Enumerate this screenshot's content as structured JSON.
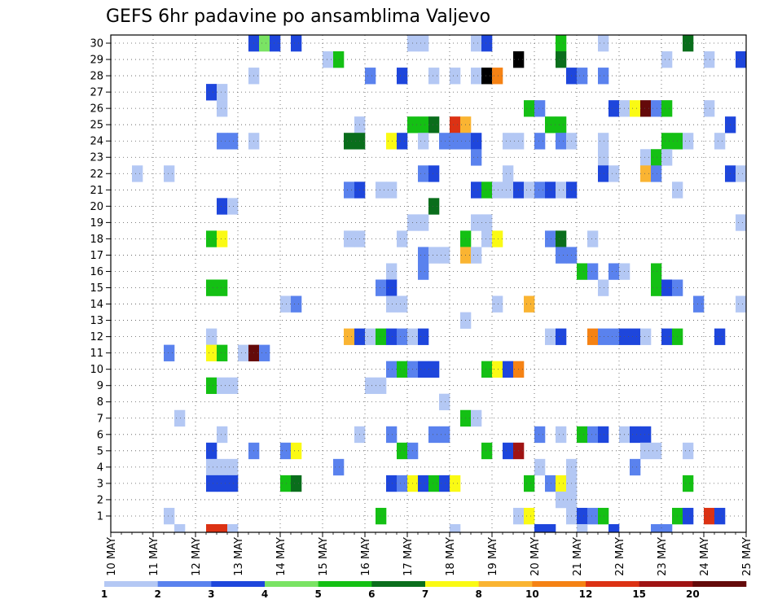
{
  "chart_data": {
    "type": "heatmap",
    "title": "GEFS 6hr padavine po ansamblima Valjevo",
    "x_labels": [
      "10 MAY",
      "11 MAY",
      "12 MAY",
      "13 MAY",
      "14 MAY",
      "15 MAY",
      "16 MAY",
      "17 MAY",
      "18 MAY",
      "19 MAY",
      "20 MAY",
      "21 MAY",
      "22 MAY",
      "23 MAY",
      "24 MAY",
      "25 MAY"
    ],
    "y_ticks": [
      1,
      2,
      3,
      4,
      5,
      6,
      7,
      8,
      9,
      10,
      11,
      12,
      13,
      14,
      15,
      16,
      17,
      18,
      19,
      20,
      21,
      22,
      23,
      24,
      25,
      26,
      27,
      28,
      29,
      30
    ],
    "members": 30,
    "steps": 60,
    "step_hours": 6,
    "grid": true,
    "legend_placement": "bottom",
    "legend": {
      "labels": [
        "1",
        "2",
        "3",
        "4",
        "5",
        "6",
        "7",
        "8",
        "10",
        "12",
        "15",
        "20"
      ],
      "colors": [
        "#b4c8f4",
        "#5a82ee",
        "#1e46dc",
        "#7ae364",
        "#14c014",
        "#0a6e1c",
        "#fafa14",
        "#fab432",
        "#f58214",
        "#dc3214",
        "#a01414",
        "#640a0a"
      ]
    },
    "cells": [
      [
        30,
        13,
        3
      ],
      [
        30,
        14,
        4
      ],
      [
        30,
        15,
        3
      ],
      [
        30,
        17,
        3
      ],
      [
        30,
        28,
        1
      ],
      [
        30,
        29,
        1
      ],
      [
        30,
        34,
        1
      ],
      [
        30,
        35,
        3
      ],
      [
        30,
        42,
        5
      ],
      [
        30,
        46,
        1
      ],
      [
        30,
        54,
        6
      ],
      [
        29,
        20,
        1
      ],
      [
        29,
        21,
        5
      ],
      [
        29,
        38,
        13
      ],
      [
        29,
        42,
        6
      ],
      [
        29,
        52,
        1
      ],
      [
        29,
        56,
        1
      ],
      [
        29,
        59,
        3
      ],
      [
        28,
        13,
        1
      ],
      [
        28,
        24,
        2
      ],
      [
        28,
        27,
        3
      ],
      [
        28,
        30,
        1
      ],
      [
        28,
        32,
        1
      ],
      [
        28,
        34,
        1
      ],
      [
        28,
        35,
        14
      ],
      [
        28,
        36,
        9
      ],
      [
        28,
        43,
        3
      ],
      [
        28,
        44,
        2
      ],
      [
        28,
        46,
        2
      ],
      [
        27,
        9,
        3
      ],
      [
        27,
        10,
        1
      ],
      [
        26,
        10,
        1
      ],
      [
        26,
        39,
        5
      ],
      [
        26,
        40,
        2
      ],
      [
        26,
        47,
        3
      ],
      [
        26,
        48,
        1
      ],
      [
        26,
        49,
        7
      ],
      [
        26,
        50,
        12
      ],
      [
        26,
        51,
        2
      ],
      [
        26,
        52,
        5
      ],
      [
        26,
        56,
        1
      ],
      [
        25,
        23,
        1
      ],
      [
        25,
        28,
        5
      ],
      [
        25,
        29,
        5
      ],
      [
        25,
        30,
        6
      ],
      [
        25,
        32,
        10
      ],
      [
        25,
        33,
        8
      ],
      [
        25,
        41,
        5
      ],
      [
        25,
        42,
        5
      ],
      [
        25,
        58,
        3
      ],
      [
        24,
        10,
        2
      ],
      [
        24,
        11,
        2
      ],
      [
        24,
        13,
        1
      ],
      [
        24,
        22,
        6
      ],
      [
        24,
        23,
        6
      ],
      [
        24,
        26,
        7
      ],
      [
        24,
        27,
        3
      ],
      [
        24,
        29,
        1
      ],
      [
        24,
        31,
        2
      ],
      [
        24,
        32,
        2
      ],
      [
        24,
        33,
        2
      ],
      [
        24,
        34,
        3
      ],
      [
        24,
        37,
        1
      ],
      [
        24,
        38,
        1
      ],
      [
        24,
        40,
        2
      ],
      [
        24,
        42,
        2
      ],
      [
        24,
        43,
        1
      ],
      [
        24,
        46,
        1
      ],
      [
        24,
        52,
        5
      ],
      [
        24,
        53,
        5
      ],
      [
        24,
        54,
        1
      ],
      [
        24,
        57,
        1
      ],
      [
        23,
        34,
        2
      ],
      [
        23,
        46,
        1
      ],
      [
        23,
        50,
        1
      ],
      [
        23,
        51,
        5
      ],
      [
        23,
        52,
        1
      ],
      [
        22,
        2,
        1
      ],
      [
        22,
        5,
        1
      ],
      [
        22,
        29,
        2
      ],
      [
        22,
        30,
        3
      ],
      [
        22,
        37,
        1
      ],
      [
        22,
        46,
        3
      ],
      [
        22,
        47,
        1
      ],
      [
        22,
        50,
        8
      ],
      [
        22,
        51,
        2
      ],
      [
        22,
        58,
        3
      ],
      [
        22,
        59,
        1
      ],
      [
        21,
        22,
        2
      ],
      [
        21,
        23,
        3
      ],
      [
        21,
        25,
        1
      ],
      [
        21,
        26,
        1
      ],
      [
        21,
        34,
        3
      ],
      [
        21,
        35,
        5
      ],
      [
        21,
        36,
        1
      ],
      [
        21,
        37,
        1
      ],
      [
        21,
        38,
        3
      ],
      [
        21,
        39,
        1
      ],
      [
        21,
        40,
        2
      ],
      [
        21,
        41,
        3
      ],
      [
        21,
        42,
        1
      ],
      [
        21,
        43,
        3
      ],
      [
        21,
        53,
        1
      ],
      [
        20,
        10,
        3
      ],
      [
        20,
        11,
        1
      ],
      [
        20,
        30,
        6
      ],
      [
        19,
        28,
        1
      ],
      [
        19,
        29,
        1
      ],
      [
        19,
        34,
        1
      ],
      [
        19,
        35,
        1
      ],
      [
        19,
        59,
        1
      ],
      [
        18,
        9,
        5
      ],
      [
        18,
        10,
        7
      ],
      [
        18,
        22,
        1
      ],
      [
        18,
        23,
        1
      ],
      [
        18,
        27,
        1
      ],
      [
        18,
        33,
        5
      ],
      [
        18,
        35,
        1
      ],
      [
        18,
        36,
        7
      ],
      [
        18,
        41,
        2
      ],
      [
        18,
        42,
        6
      ],
      [
        18,
        45,
        1
      ],
      [
        17,
        29,
        2
      ],
      [
        17,
        30,
        1
      ],
      [
        17,
        31,
        1
      ],
      [
        17,
        33,
        8
      ],
      [
        17,
        34,
        1
      ],
      [
        17,
        42,
        2
      ],
      [
        17,
        43,
        2
      ],
      [
        16,
        26,
        1
      ],
      [
        16,
        29,
        2
      ],
      [
        16,
        44,
        5
      ],
      [
        16,
        45,
        2
      ],
      [
        16,
        47,
        2
      ],
      [
        16,
        48,
        1
      ],
      [
        16,
        51,
        5
      ],
      [
        15,
        9,
        5
      ],
      [
        15,
        10,
        5
      ],
      [
        15,
        25,
        2
      ],
      [
        15,
        26,
        3
      ],
      [
        15,
        46,
        1
      ],
      [
        15,
        51,
        5
      ],
      [
        15,
        52,
        3
      ],
      [
        15,
        53,
        2
      ],
      [
        14,
        16,
        1
      ],
      [
        14,
        17,
        2
      ],
      [
        14,
        26,
        1
      ],
      [
        14,
        27,
        1
      ],
      [
        14,
        36,
        1
      ],
      [
        14,
        39,
        8
      ],
      [
        14,
        55,
        2
      ],
      [
        14,
        59,
        1
      ],
      [
        13,
        33,
        1
      ],
      [
        12,
        9,
        1
      ],
      [
        12,
        22,
        8
      ],
      [
        12,
        23,
        3
      ],
      [
        12,
        24,
        1
      ],
      [
        12,
        25,
        5
      ],
      [
        12,
        26,
        3
      ],
      [
        12,
        27,
        2
      ],
      [
        12,
        28,
        1
      ],
      [
        12,
        29,
        3
      ],
      [
        12,
        41,
        1
      ],
      [
        12,
        42,
        3
      ],
      [
        12,
        45,
        9
      ],
      [
        12,
        46,
        2
      ],
      [
        12,
        47,
        2
      ],
      [
        12,
        48,
        3
      ],
      [
        12,
        49,
        3
      ],
      [
        12,
        50,
        1
      ],
      [
        12,
        52,
        3
      ],
      [
        12,
        53,
        5
      ],
      [
        12,
        57,
        3
      ],
      [
        11,
        5,
        2
      ],
      [
        11,
        9,
        7
      ],
      [
        11,
        10,
        5
      ],
      [
        11,
        12,
        1
      ],
      [
        11,
        13,
        12
      ],
      [
        11,
        14,
        2
      ],
      [
        10,
        26,
        2
      ],
      [
        10,
        27,
        5
      ],
      [
        10,
        28,
        2
      ],
      [
        10,
        29,
        3
      ],
      [
        10,
        30,
        3
      ],
      [
        10,
        35,
        5
      ],
      [
        10,
        36,
        7
      ],
      [
        10,
        37,
        3
      ],
      [
        10,
        38,
        9
      ],
      [
        9,
        9,
        5
      ],
      [
        9,
        10,
        1
      ],
      [
        9,
        11,
        1
      ],
      [
        9,
        24,
        1
      ],
      [
        9,
        25,
        1
      ],
      [
        8,
        31,
        1
      ],
      [
        7,
        6,
        1
      ],
      [
        7,
        33,
        5
      ],
      [
        7,
        34,
        1
      ],
      [
        6,
        10,
        1
      ],
      [
        6,
        23,
        1
      ],
      [
        6,
        26,
        2
      ],
      [
        6,
        30,
        2
      ],
      [
        6,
        31,
        2
      ],
      [
        6,
        40,
        2
      ],
      [
        6,
        42,
        1
      ],
      [
        6,
        44,
        5
      ],
      [
        6,
        45,
        2
      ],
      [
        6,
        46,
        3
      ],
      [
        6,
        48,
        1
      ],
      [
        6,
        49,
        3
      ],
      [
        6,
        50,
        3
      ],
      [
        5,
        9,
        3
      ],
      [
        5,
        13,
        2
      ],
      [
        5,
        16,
        2
      ],
      [
        5,
        17,
        7
      ],
      [
        5,
        27,
        5
      ],
      [
        5,
        28,
        2
      ],
      [
        5,
        35,
        5
      ],
      [
        5,
        37,
        3
      ],
      [
        5,
        38,
        11
      ],
      [
        5,
        50,
        1
      ],
      [
        5,
        51,
        1
      ],
      [
        5,
        54,
        1
      ],
      [
        4,
        9,
        1
      ],
      [
        4,
        10,
        1
      ],
      [
        4,
        11,
        1
      ],
      [
        4,
        21,
        2
      ],
      [
        4,
        40,
        1
      ],
      [
        4,
        43,
        1
      ],
      [
        4,
        49,
        2
      ],
      [
        3,
        9,
        3
      ],
      [
        3,
        10,
        3
      ],
      [
        3,
        11,
        3
      ],
      [
        3,
        16,
        5
      ],
      [
        3,
        17,
        6
      ],
      [
        3,
        26,
        3
      ],
      [
        3,
        27,
        2
      ],
      [
        3,
        28,
        7
      ],
      [
        3,
        29,
        3
      ],
      [
        3,
        30,
        5
      ],
      [
        3,
        31,
        3
      ],
      [
        3,
        32,
        7
      ],
      [
        3,
        39,
        5
      ],
      [
        3,
        41,
        2
      ],
      [
        3,
        42,
        7
      ],
      [
        3,
        43,
        1
      ],
      [
        3,
        54,
        5
      ],
      [
        2,
        42,
        1
      ],
      [
        2,
        43,
        1
      ],
      [
        1,
        5,
        1
      ],
      [
        1,
        25,
        5
      ],
      [
        1,
        38,
        1
      ],
      [
        1,
        39,
        7
      ],
      [
        1,
        43,
        1
      ],
      [
        1,
        44,
        3
      ],
      [
        1,
        45,
        2
      ],
      [
        1,
        46,
        5
      ],
      [
        1,
        53,
        5
      ],
      [
        1,
        54,
        3
      ],
      [
        1,
        56,
        10
      ],
      [
        1,
        57,
        3
      ]
    ],
    "bottom_row_cells": [
      [
        6,
        1
      ],
      [
        9,
        10
      ],
      [
        10,
        10
      ],
      [
        11,
        1
      ],
      [
        32,
        1
      ],
      [
        40,
        3
      ],
      [
        41,
        3
      ],
      [
        44,
        1
      ],
      [
        47,
        3
      ],
      [
        51,
        2
      ],
      [
        52,
        2
      ]
    ]
  }
}
